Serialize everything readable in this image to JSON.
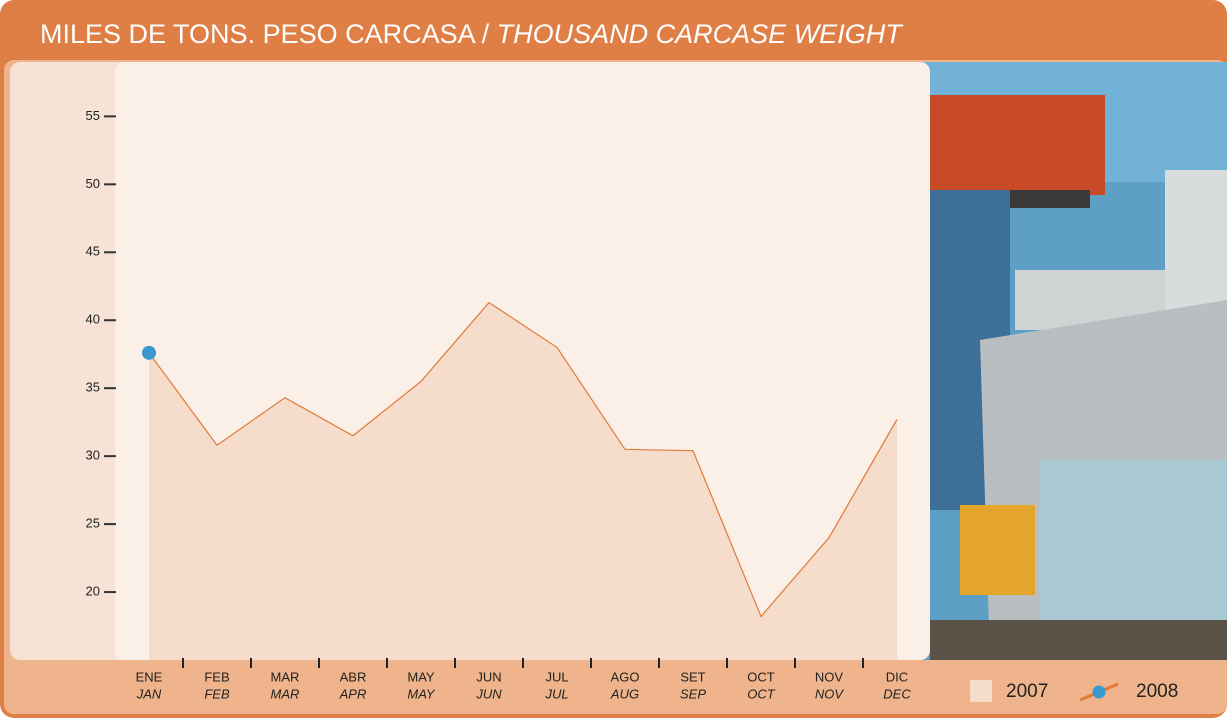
{
  "chart_data": {
    "type": "area",
    "title": "MILES DE TONS. PESO CARCASA /",
    "title_en": "THOUSAND CARCASE WEIGHT",
    "categories": [
      "ENE",
      "FEB",
      "MAR",
      "ABR",
      "MAY",
      "JUN",
      "JUL",
      "AGO",
      "SET",
      "OCT",
      "NOV",
      "DIC"
    ],
    "categories_en": [
      "JAN",
      "FEB",
      "MAR",
      "APR",
      "MAY",
      "JUN",
      "JUL",
      "AUG",
      "SEP",
      "OCT",
      "NOV",
      "DEC"
    ],
    "series": [
      {
        "name": "2007",
        "color": "#e07a3c",
        "fill": "#f6dccb",
        "values": [
          37.6,
          30.8,
          34.3,
          31.5,
          35.5,
          41.3,
          38.0,
          30.5,
          30.4,
          18.2,
          24.0,
          32.7
        ]
      },
      {
        "name": "2008",
        "color": "#3a9ad0",
        "values": [
          37.6,
          null,
          null,
          null,
          null,
          null,
          null,
          null,
          null,
          null,
          null,
          null
        ]
      }
    ],
    "ylim": [
      15,
      59
    ],
    "yticks": [
      20,
      25,
      30,
      35,
      40,
      45,
      50,
      55
    ],
    "legend": "bottom-right"
  }
}
